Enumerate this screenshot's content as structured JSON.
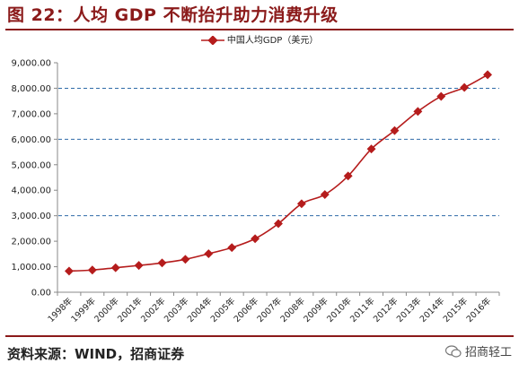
{
  "title": "图 22：人均 GDP 不断抬升助力消费升级",
  "source": "资料来源：WIND，招商证券",
  "brand": {
    "icon": "wechat-icon",
    "label": "招商轻工"
  },
  "colors": {
    "title": "#8b1a1a",
    "series": "#b51c1c",
    "refline": "#2e6aa8"
  },
  "chart_data": {
    "type": "line",
    "title": "",
    "xlabel": "",
    "ylabel": "",
    "ylim": [
      0,
      9000
    ],
    "yticks": [
      "0.00",
      "1,000.00",
      "2,000.00",
      "3,000.00",
      "4,000.00",
      "5,000.00",
      "6,000.00",
      "7,000.00",
      "8,000.00",
      "9,000.00"
    ],
    "ytick_values": [
      0,
      1000,
      2000,
      3000,
      4000,
      5000,
      6000,
      7000,
      8000,
      9000
    ],
    "categories": [
      "1998年",
      "1999年",
      "2000年",
      "2001年",
      "2002年",
      "2003年",
      "2004年",
      "2005年",
      "2006年",
      "2007年",
      "2008年",
      "2009年",
      "2010年",
      "2011年",
      "2012年",
      "2013年",
      "2014年",
      "2015年",
      "2016年"
    ],
    "series": [
      {
        "name": "中国人均GDP（美元）",
        "values": [
          830,
          870,
          960,
          1050,
          1150,
          1290,
          1510,
          1750,
          2100,
          2690,
          3470,
          3830,
          4560,
          5620,
          6340,
          7090,
          7680,
          8030,
          8530
        ]
      }
    ],
    "reference_lines": [
      3000,
      6000,
      8000
    ],
    "grid": false,
    "legend": "top-center"
  }
}
